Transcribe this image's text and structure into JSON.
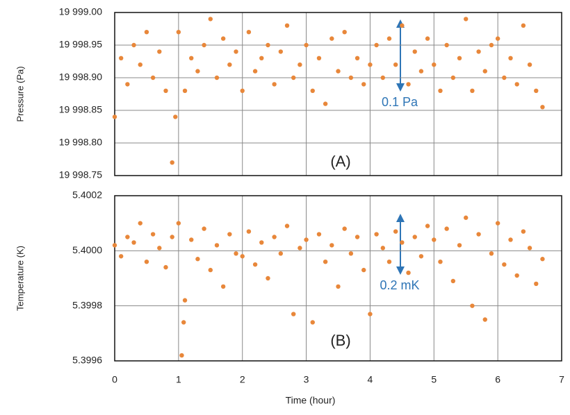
{
  "chart_data": [
    {
      "type": "scatter",
      "y_label": "Pressure (Pa)",
      "annotations": [
        "(A)",
        "0.1 Pa"
      ],
      "xlim": [
        0,
        7
      ],
      "xticks": [
        0,
        1,
        2,
        3,
        4,
        5,
        6,
        7
      ],
      "ylim": [
        19998.75,
        19999.0
      ],
      "yticks": [
        {
          "value": 19998.75,
          "label": "19 998.75"
        },
        {
          "value": 19998.8,
          "label": "19 998.80"
        },
        {
          "value": 19998.85,
          "label": "19 998.85"
        },
        {
          "value": 19998.9,
          "label": "19 998.90"
        },
        {
          "value": 19998.95,
          "label": "19 998.95"
        },
        {
          "value": 19999.0,
          "label": "19 999.00"
        }
      ],
      "grid": true,
      "series": [
        {
          "color": "#e8873a",
          "x": [
            0,
            0.1,
            0.2,
            0.3,
            0.4,
            0.5,
            0.6,
            0.7,
            0.8,
            0.9,
            1.0,
            1.1,
            1.2,
            1.3,
            1.4,
            1.5,
            1.6,
            1.7,
            1.8,
            1.9,
            2.0,
            2.1,
            2.2,
            2.3,
            2.4,
            2.5,
            2.6,
            2.7,
            2.8,
            2.9,
            3.0,
            3.1,
            3.2,
            3.3,
            3.4,
            3.5,
            3.6,
            3.7,
            3.8,
            3.9,
            4.0,
            4.1,
            4.2,
            4.3,
            4.4,
            4.5,
            4.6,
            4.7,
            4.8,
            4.9,
            5.0,
            5.1,
            5.2,
            5.3,
            5.4,
            5.5,
            5.6,
            5.7,
            5.8,
            5.9,
            6.0,
            6.1,
            6.2,
            6.3,
            6.4,
            6.5,
            6.6,
            6.7,
            0.95
          ],
          "values": [
            19998.84,
            19998.93,
            19998.89,
            19998.95,
            19998.92,
            19998.97,
            19998.9,
            19998.94,
            19998.88,
            19998.77,
            19998.97,
            19998.88,
            19998.93,
            19998.91,
            19998.95,
            19998.99,
            19998.9,
            19998.96,
            19998.92,
            19998.94,
            19998.88,
            19998.97,
            19998.91,
            19998.93,
            19998.95,
            19998.89,
            19998.94,
            19998.98,
            19998.9,
            19998.92,
            19998.95,
            19998.88,
            19998.93,
            19998.86,
            19998.96,
            19998.91,
            19998.97,
            19998.9,
            19998.93,
            19998.89,
            19998.92,
            19998.95,
            19998.9,
            19998.96,
            19998.92,
            19998.98,
            19998.89,
            19998.94,
            19998.91,
            19998.96,
            19998.92,
            19998.88,
            19998.95,
            19998.9,
            19998.93,
            19998.99,
            19998.88,
            19998.94,
            19998.91,
            19998.95,
            19998.96,
            19998.9,
            19998.93,
            19998.89,
            19998.98,
            19998.92,
            19998.88,
            19998.855,
            19998.84
          ]
        }
      ]
    },
    {
      "type": "scatter",
      "y_label": "Temperature (K)",
      "x_label": "Time (hour)",
      "annotations": [
        "(B)",
        "0.2 mK"
      ],
      "xlim": [
        0,
        7
      ],
      "xticks": [
        0,
        1,
        2,
        3,
        4,
        5,
        6,
        7
      ],
      "ylim": [
        5.3996,
        5.4002
      ],
      "yticks": [
        5.3996,
        5.3998,
        {
          "value": 5.4,
          "label": "5.4000"
        },
        5.4002
      ],
      "grid": true,
      "series": [
        {
          "color": "#e8873a",
          "x": [
            0,
            0.1,
            0.2,
            0.3,
            0.4,
            0.5,
            0.6,
            0.7,
            0.8,
            0.9,
            1.0,
            1.1,
            1.2,
            1.3,
            1.4,
            1.5,
            1.6,
            1.7,
            1.8,
            1.9,
            2.0,
            2.1,
            2.2,
            2.3,
            2.4,
            2.5,
            2.6,
            2.7,
            2.8,
            2.9,
            3.0,
            3.1,
            3.2,
            3.3,
            3.4,
            3.5,
            3.6,
            3.7,
            3.8,
            3.9,
            4.0,
            4.1,
            4.2,
            4.3,
            4.4,
            4.5,
            4.6,
            4.7,
            4.8,
            4.9,
            5.0,
            5.1,
            5.2,
            5.3,
            5.4,
            5.5,
            5.6,
            5.7,
            5.8,
            5.9,
            6.0,
            6.1,
            6.2,
            6.3,
            6.4,
            6.5,
            6.6,
            6.7,
            1.05,
            1.08
          ],
          "values": [
            5.40002,
            5.39998,
            5.40005,
            5.40003,
            5.4001,
            5.39996,
            5.40006,
            5.40001,
            5.39994,
            5.40005,
            5.4001,
            5.39982,
            5.40004,
            5.39997,
            5.40008,
            5.39993,
            5.40002,
            5.39987,
            5.40006,
            5.39999,
            5.39998,
            5.40007,
            5.39995,
            5.40003,
            5.3999,
            5.40005,
            5.39999,
            5.40009,
            5.39977,
            5.40001,
            5.40004,
            5.39974,
            5.40006,
            5.39996,
            5.40002,
            5.39987,
            5.40008,
            5.39999,
            5.40005,
            5.39993,
            5.39977,
            5.40006,
            5.40001,
            5.39996,
            5.40007,
            5.40003,
            5.39992,
            5.40005,
            5.39998,
            5.40009,
            5.40004,
            5.39996,
            5.40008,
            5.39989,
            5.40002,
            5.40012,
            5.3998,
            5.40006,
            5.39975,
            5.39999,
            5.4001,
            5.39995,
            5.40004,
            5.39991,
            5.40007,
            5.40001,
            5.39988,
            5.39997,
            5.39962,
            5.39974
          ]
        }
      ]
    }
  ]
}
